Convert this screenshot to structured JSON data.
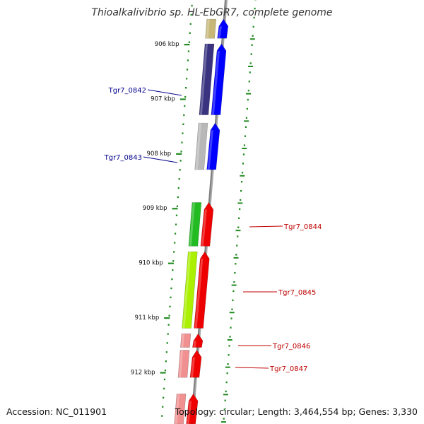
{
  "title": "Thioalkalivibrio sp. HL-EbGR7, complete genome",
  "accession_text": "Accession: NC_011901",
  "summary_text": "Topology: circular; Length: 3,464,554 bp; Genes: 3,330",
  "scale": {
    "ticks": [
      "906 kbp",
      "907 kbp",
      "908 kbp",
      "909 kbp",
      "910 kbp",
      "911 kbp",
      "912 kbp"
    ]
  },
  "colors": {
    "backbone": "#808080",
    "tick": "#228b22",
    "left_label": "#00008b",
    "right_label": "#c00000"
  },
  "genes": [
    {
      "name": "",
      "strand": "-",
      "start_kbp": 905.55,
      "end_kbp": 905.9,
      "color": "#c8b878"
    },
    {
      "name": "",
      "strand": "+",
      "start_kbp": 905.55,
      "end_kbp": 905.9,
      "color": "#0000ff"
    },
    {
      "name": "",
      "strand": "-",
      "start_kbp": 906.0,
      "end_kbp": 907.3,
      "color": "#3a3480"
    },
    {
      "name": "Tgr7_0842",
      "strand": "+",
      "start_kbp": 906.0,
      "end_kbp": 907.3,
      "color": "#0000ff",
      "label_side": "left"
    },
    {
      "name": "",
      "strand": "-",
      "start_kbp": 907.45,
      "end_kbp": 908.3,
      "color": "#b8b8b8"
    },
    {
      "name": "Tgr7_0843",
      "strand": "+",
      "start_kbp": 907.45,
      "end_kbp": 908.3,
      "color": "#0000ff",
      "label_side": "left"
    },
    {
      "name": "Tgr7_0844",
      "strand": "+",
      "start_kbp": 908.9,
      "end_kbp": 909.7,
      "color": "#ee0000",
      "label_side": "right"
    },
    {
      "name": "",
      "strand": "-",
      "start_kbp": 908.9,
      "end_kbp": 909.7,
      "color": "#22bb22"
    },
    {
      "name": "Tgr7_0845",
      "strand": "+",
      "start_kbp": 909.8,
      "end_kbp": 911.2,
      "color": "#ee0000",
      "label_side": "right"
    },
    {
      "name": "",
      "strand": "-",
      "start_kbp": 909.8,
      "end_kbp": 911.2,
      "color": "#aaf000"
    },
    {
      "name": "Tgr7_0846",
      "strand": "+",
      "start_kbp": 911.3,
      "end_kbp": 911.55,
      "color": "#ee0000",
      "label_side": "right"
    },
    {
      "name": "",
      "strand": "-",
      "start_kbp": 911.3,
      "end_kbp": 911.55,
      "color": "#f09090"
    },
    {
      "name": "Tgr7_0847",
      "strand": "+",
      "start_kbp": 911.6,
      "end_kbp": 912.1,
      "color": "#ee0000",
      "label_side": "right"
    },
    {
      "name": "",
      "strand": "-",
      "start_kbp": 911.6,
      "end_kbp": 912.1,
      "color": "#f09090"
    },
    {
      "name": "",
      "strand": "+",
      "start_kbp": 912.4,
      "end_kbp": 912.95,
      "color": "#ee0000"
    },
    {
      "name": "",
      "strand": "-",
      "start_kbp": 912.4,
      "end_kbp": 912.95,
      "color": "#f09090"
    }
  ]
}
